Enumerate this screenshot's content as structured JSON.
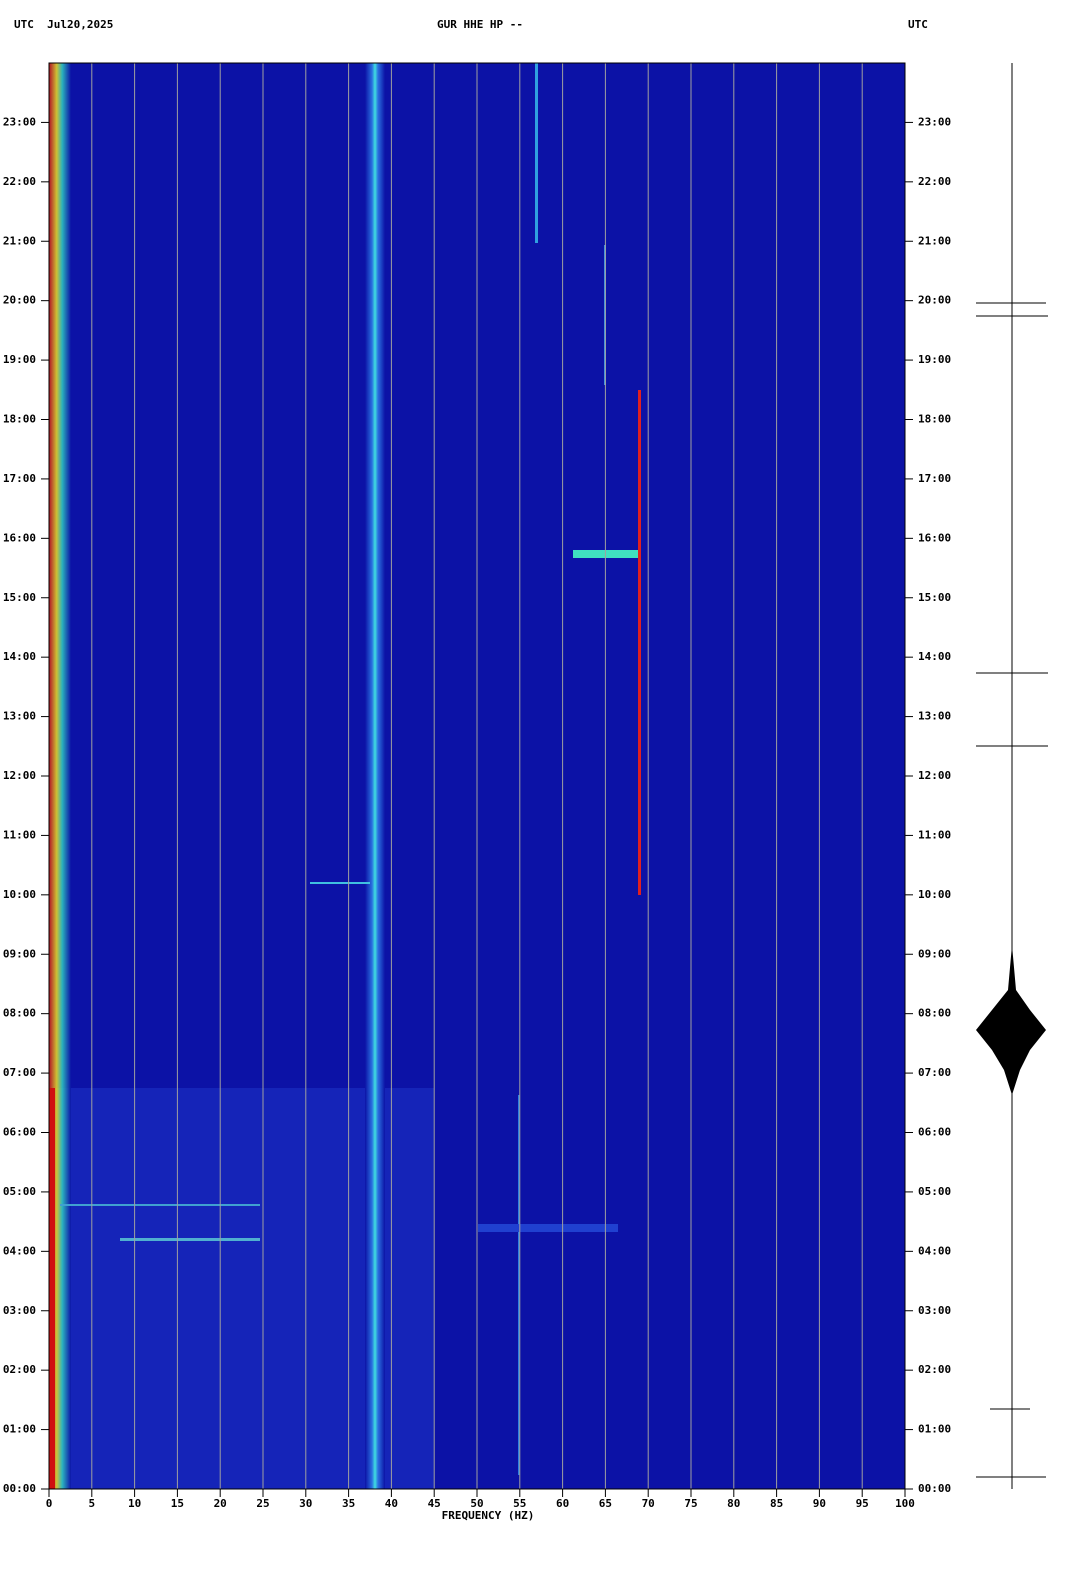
{
  "chart_data": {
    "type": "spectrogram",
    "date_label": "UTC  Jul20,2025",
    "title": "GUR HHE HP --",
    "right_label": "UTC",
    "xlabel": "FREQUENCY (HZ)",
    "xlim": [
      0,
      100
    ],
    "xticks": [
      0,
      5,
      10,
      15,
      20,
      25,
      30,
      35,
      40,
      45,
      50,
      55,
      60,
      65,
      70,
      75,
      80,
      85,
      90,
      95,
      100
    ],
    "ylim": [
      0,
      24
    ],
    "yticks": [
      {
        "value": 0,
        "label": "00:00"
      },
      {
        "value": 1,
        "label": "01:00"
      },
      {
        "value": 2,
        "label": "02:00"
      },
      {
        "value": 3,
        "label": "03:00"
      },
      {
        "value": 4,
        "label": "04:00"
      },
      {
        "value": 5,
        "label": "05:00"
      },
      {
        "value": 6,
        "label": "06:00"
      },
      {
        "value": 7,
        "label": "07:00"
      },
      {
        "value": 8,
        "label": "08:00"
      },
      {
        "value": 9,
        "label": "09:00"
      },
      {
        "value": 10,
        "label": "10:00"
      },
      {
        "value": 11,
        "label": "11:00"
      },
      {
        "value": 12,
        "label": "12:00"
      },
      {
        "value": 13,
        "label": "13:00"
      },
      {
        "value": 14,
        "label": "14:00"
      },
      {
        "value": 15,
        "label": "15:00"
      },
      {
        "value": 16,
        "label": "16:00"
      },
      {
        "value": 17,
        "label": "17:00"
      },
      {
        "value": 18,
        "label": "18:00"
      },
      {
        "value": 19,
        "label": "19:00"
      },
      {
        "value": 20,
        "label": "20:00"
      },
      {
        "value": 21,
        "label": "21:00"
      },
      {
        "value": 22,
        "label": "22:00"
      },
      {
        "value": 23,
        "label": "23:00"
      }
    ],
    "grid": true,
    "grid_color": "#a0a0a0",
    "background_color": "#0c12a6"
  }
}
